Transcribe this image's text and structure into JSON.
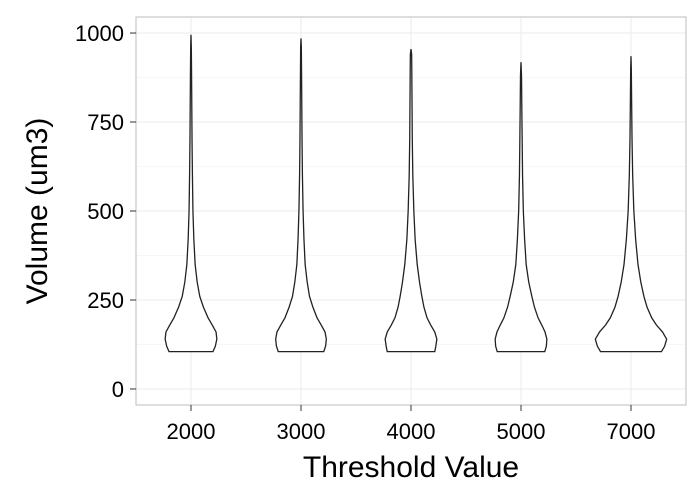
{
  "chart_data": {
    "type": "violin",
    "title": "",
    "xlabel": "Threshold Value",
    "ylabel": "Volume (um3)",
    "ylim": [
      -45,
      1045
    ],
    "y_ticks": [
      0,
      250,
      500,
      750,
      1000
    ],
    "y_tick_labels": [
      "0",
      "250",
      "500",
      "750",
      "1000"
    ],
    "grid": true,
    "legend": "none",
    "colors": {
      "violin_fill": "#ffffff",
      "violin_stroke": "#222222",
      "grid": "#ebebeb",
      "panel_border": "#bdbdbd"
    },
    "categories": [
      "2000",
      "3000",
      "4000",
      "5000",
      "7000"
    ],
    "violins": [
      {
        "category": "2000",
        "min": 105,
        "max": 995,
        "profile": [
          [
            105,
            0.85
          ],
          [
            120,
            0.94
          ],
          [
            140,
            1.0
          ],
          [
            160,
            0.97
          ],
          [
            180,
            0.82
          ],
          [
            200,
            0.66
          ],
          [
            230,
            0.48
          ],
          [
            260,
            0.34
          ],
          [
            300,
            0.24
          ],
          [
            350,
            0.16
          ],
          [
            420,
            0.11
          ],
          [
            500,
            0.075
          ],
          [
            600,
            0.055
          ],
          [
            700,
            0.04
          ],
          [
            800,
            0.03
          ],
          [
            900,
            0.02
          ],
          [
            960,
            0.012
          ],
          [
            995,
            0.0
          ]
        ]
      },
      {
        "category": "3000",
        "min": 105,
        "max": 985,
        "profile": [
          [
            105,
            0.88
          ],
          [
            120,
            0.95
          ],
          [
            140,
            0.98
          ],
          [
            160,
            0.93
          ],
          [
            180,
            0.78
          ],
          [
            200,
            0.62
          ],
          [
            230,
            0.46
          ],
          [
            260,
            0.33
          ],
          [
            300,
            0.24
          ],
          [
            350,
            0.16
          ],
          [
            420,
            0.115
          ],
          [
            500,
            0.08
          ],
          [
            600,
            0.055
          ],
          [
            700,
            0.04
          ],
          [
            800,
            0.03
          ],
          [
            900,
            0.02
          ],
          [
            960,
            0.013
          ],
          [
            985,
            0.0
          ]
        ]
      },
      {
        "category": "4000",
        "min": 105,
        "max": 955,
        "profile": [
          [
            105,
            0.92
          ],
          [
            120,
            0.96
          ],
          [
            140,
            1.0
          ],
          [
            160,
            0.92
          ],
          [
            180,
            0.76
          ],
          [
            200,
            0.62
          ],
          [
            230,
            0.5
          ],
          [
            260,
            0.42
          ],
          [
            300,
            0.33
          ],
          [
            350,
            0.24
          ],
          [
            420,
            0.16
          ],
          [
            500,
            0.11
          ],
          [
            600,
            0.07
          ],
          [
            700,
            0.05
          ],
          [
            800,
            0.04
          ],
          [
            900,
            0.03
          ],
          [
            940,
            0.025
          ],
          [
            955,
            0.0
          ]
        ]
      },
      {
        "category": "5000",
        "min": 105,
        "max": 918,
        "profile": [
          [
            105,
            0.92
          ],
          [
            120,
            0.98
          ],
          [
            140,
            1.0
          ],
          [
            160,
            0.93
          ],
          [
            180,
            0.8
          ],
          [
            200,
            0.66
          ],
          [
            230,
            0.52
          ],
          [
            260,
            0.42
          ],
          [
            300,
            0.3
          ],
          [
            350,
            0.2
          ],
          [
            420,
            0.14
          ],
          [
            500,
            0.09
          ],
          [
            600,
            0.06
          ],
          [
            700,
            0.045
          ],
          [
            800,
            0.03
          ],
          [
            880,
            0.02
          ],
          [
            918,
            0.0
          ]
        ]
      },
      {
        "category": "7000",
        "min": 105,
        "max": 935,
        "profile": [
          [
            105,
            1.18
          ],
          [
            120,
            1.3
          ],
          [
            140,
            1.38
          ],
          [
            160,
            1.22
          ],
          [
            180,
            0.98
          ],
          [
            200,
            0.8
          ],
          [
            230,
            0.62
          ],
          [
            260,
            0.5
          ],
          [
            300,
            0.38
          ],
          [
            350,
            0.27
          ],
          [
            420,
            0.18
          ],
          [
            500,
            0.11
          ],
          [
            600,
            0.065
          ],
          [
            700,
            0.04
          ],
          [
            800,
            0.025
          ],
          [
            900,
            0.012
          ],
          [
            935,
            0.0
          ]
        ]
      }
    ]
  }
}
